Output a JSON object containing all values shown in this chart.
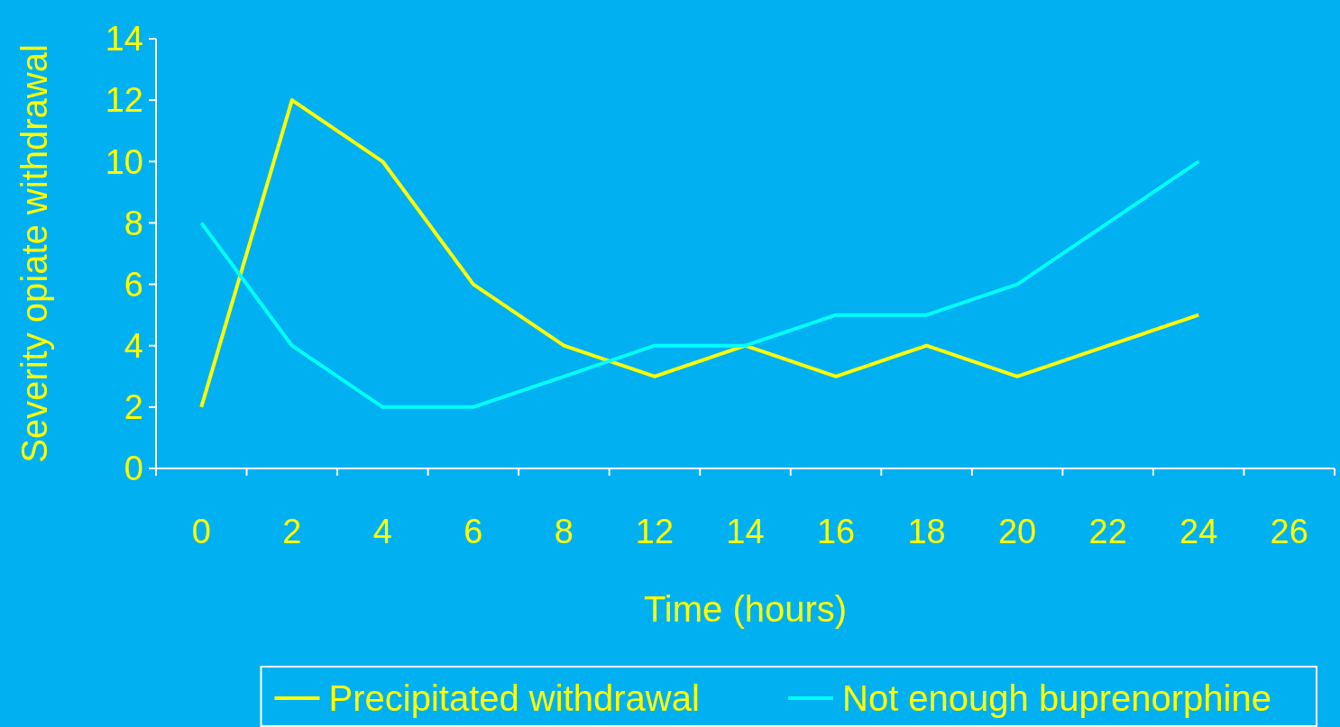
{
  "chart_data": {
    "type": "line",
    "xlabel": "Time (hours)",
    "ylabel": "Severity opiate withdrawal",
    "categories": [
      "0",
      "2",
      "4",
      "6",
      "8",
      "12",
      "14",
      "16",
      "18",
      "20",
      "22",
      "24",
      "26"
    ],
    "ylim": [
      0,
      14
    ],
    "yticks": [
      0,
      2,
      4,
      6,
      8,
      10,
      12,
      14
    ],
    "grid": false,
    "legend": "bottom",
    "marker": "none",
    "line_style": "solid",
    "series": [
      {
        "name": "Precipitated withdrawal",
        "color": "#ffff00",
        "values": [
          2,
          12,
          10,
          6,
          4,
          3,
          4,
          3,
          4,
          3,
          4,
          5,
          null
        ]
      },
      {
        "name": "Not enough buprenorphine",
        "color": "#00ffff",
        "values": [
          8,
          4,
          2,
          2,
          3,
          4,
          4,
          5,
          5,
          6,
          8,
          10,
          null
        ]
      }
    ]
  }
}
